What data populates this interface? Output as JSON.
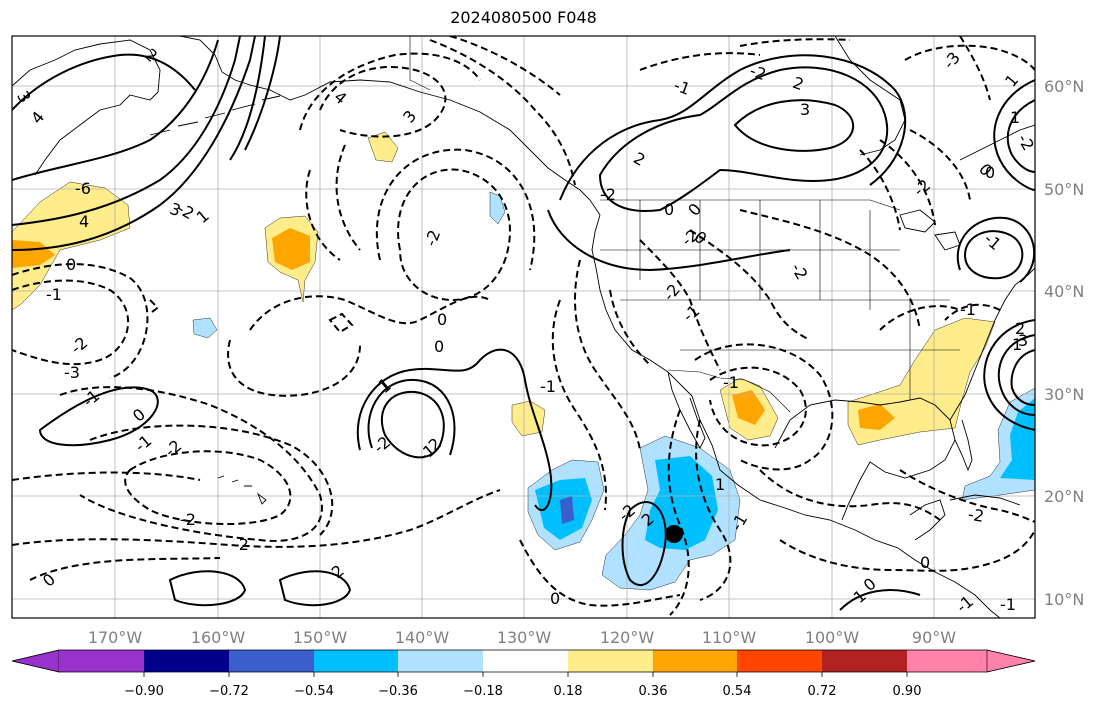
{
  "title": "2024080500 F048",
  "lon_labels": [
    "170°W",
    "160°W",
    "150°W",
    "140°W",
    "130°W",
    "120°W",
    "110°W",
    "100°W",
    "90°W"
  ],
  "lat_labels": [
    "60°N",
    "50°N",
    "40°N",
    "30°N",
    "20°N",
    "10°N"
  ],
  "contour_labels": [
    "3",
    "4",
    "2",
    "4",
    "3",
    "-6",
    "4",
    "3",
    "1",
    "-2",
    "0",
    "-1",
    "-2",
    "-3",
    "-2",
    "-1",
    "0",
    "-2",
    "-1",
    "-2",
    "-1",
    "1",
    "-2",
    "-2",
    "2",
    "0",
    "3",
    "2",
    "-1",
    "-2",
    "-2",
    "-2",
    "-3",
    "1",
    "0",
    "-2",
    "0",
    "0",
    "1",
    "1",
    "-2",
    "-1",
    "-2",
    "0",
    "-1",
    "0",
    "1",
    "-1",
    "1",
    "-1",
    "2",
    "-1",
    "0",
    "-2",
    "0",
    "2",
    "-2",
    "-1",
    "2",
    "-1",
    "-2",
    "0",
    "0",
    "0",
    "-1",
    "2",
    "1",
    "3"
  ],
  "colorbar": {
    "ticks": [
      "−0.90",
      "−0.72",
      "−0.54",
      "−0.36",
      "−0.18",
      "0.18",
      "0.36",
      "0.54",
      "0.72",
      "0.90"
    ],
    "colors": {
      "under": "#9932cc",
      "c1": "#00008b",
      "c2": "#3a5fcd",
      "c3": "#00bfff",
      "c4": "#b0e2ff",
      "c5": "#ffffff",
      "c6": "#ffec8b",
      "c7": "#ffa500",
      "c8": "#ff4500",
      "c9": "#b22222",
      "over": "#ff82ab"
    }
  }
}
